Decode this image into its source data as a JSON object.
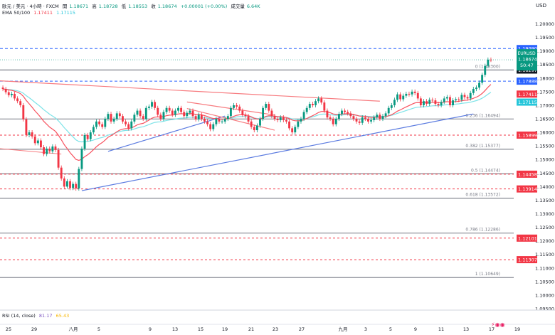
{
  "header": {
    "symbol_line": "歐元 / 美元 · 4小時 · FXCM",
    "open_label": "開",
    "open": "1.18671",
    "high_label": "高",
    "high": "1.18728",
    "low_label": "低",
    "low": "1.18553",
    "close_label": "收",
    "close": "1.18674",
    "change": "+0.00001 (+0.00%)",
    "volume_label": "成交量",
    "volume": "6.64K",
    "ema_label": "EMA 50/100",
    "ema50": "1.17411",
    "ema100": "1.17115",
    "currency": "USD"
  },
  "rsi": {
    "label": "RSI (14, close)",
    "value1": "81.17",
    "value2": "65.43"
  },
  "colors": {
    "up": "#089981",
    "down": "#f23645",
    "ema50": "#f7525f",
    "ema100": "#7de3e8",
    "blue": "#2962ff",
    "fib": "#787b86",
    "trend_red": "#f77c80",
    "trend_blue": "#5b7be0"
  },
  "chart_data": {
    "type": "candlestick",
    "symbol": "EURUSD",
    "timeframe": "4h",
    "ylim": [
      1.095,
      1.2025
    ],
    "y_ticks": [
      "1.20000",
      "1.19500",
      "1.19000",
      "1.18500",
      "1.18000",
      "1.17500",
      "1.17000",
      "1.16500",
      "1.16000",
      "1.15500",
      "1.15000",
      "1.14500",
      "1.14000",
      "1.13500",
      "1.13000",
      "1.12500",
      "1.12000",
      "1.11500",
      "1.11000",
      "1.10500",
      "1.10000",
      "1.09500"
    ],
    "x_ticks": [
      "25",
      "29",
      "八月",
      "5",
      "9",
      "13",
      "15",
      "19",
      "21",
      "23",
      "27",
      "九月",
      "3",
      "5",
      "9",
      "11",
      "13",
      "17",
      "19"
    ],
    "last_price": {
      "label": "EURUSD",
      "value": "1.18674",
      "countdown": "50:47"
    },
    "price_lines": [
      {
        "value": "1.19090",
        "style": "dashed-blue"
      },
      {
        "value": "1.18297",
        "style": "solid-gray"
      },
      {
        "value": "1.17888",
        "style": "dashed-blue"
      },
      {
        "value": "1.15899",
        "style": "dashed-red"
      },
      {
        "value": "1.14458",
        "style": "dashed-red"
      },
      {
        "value": "1.13914",
        "style": "dashed-red"
      },
      {
        "value": "1.12101",
        "style": "dashed-red"
      },
      {
        "value": "1.11307",
        "style": "dashed-red"
      }
    ],
    "ema_tags": [
      {
        "value": "1.17411",
        "color": "#f23645"
      },
      {
        "value": "1.17115",
        "color": "#26c6da"
      }
    ],
    "fib_levels": [
      {
        "label": "0 (1.18300)",
        "value": 1.183
      },
      {
        "label": "0.236 (1.16494)",
        "value": 1.16494
      },
      {
        "label": "0.382 (1.15377)",
        "value": 1.15377
      },
      {
        "label": "0.5 (1.14474)",
        "value": 1.14474
      },
      {
        "label": "0.618 (1.13572)",
        "value": 1.13572
      },
      {
        "label": "0.786 (1.12286)",
        "value": 1.12286
      },
      {
        "label": "1 (1.10649)",
        "value": 1.10649
      }
    ],
    "closes": [
      1.176,
      1.1748,
      1.1737,
      1.1742,
      1.1725,
      1.1715,
      1.17,
      1.1648,
      1.159,
      1.16,
      1.1585,
      1.156,
      1.157,
      1.1545,
      1.152,
      1.154,
      1.153,
      1.1548,
      1.1535,
      1.147,
      1.143,
      1.14,
      1.142,
      1.1395,
      1.141,
      1.1393,
      1.1465,
      1.154,
      1.159,
      1.1575,
      1.16,
      1.162,
      1.164,
      1.163,
      1.162,
      1.165,
      1.1668,
      1.164,
      1.165,
      1.167,
      1.166,
      1.164,
      1.163,
      1.1615,
      1.164,
      1.1665,
      1.168,
      1.166,
      1.165,
      1.169,
      1.1695,
      1.1712,
      1.169,
      1.1665,
      1.165,
      1.1675,
      1.169,
      1.168,
      1.1665,
      1.168,
      1.169,
      1.1675,
      1.166,
      1.1672,
      1.168,
      1.166,
      1.1648,
      1.1665,
      1.165,
      1.164,
      1.163,
      1.1612,
      1.163,
      1.165,
      1.164,
      1.164,
      1.165,
      1.166,
      1.169,
      1.17,
      1.1695,
      1.168,
      1.1665,
      1.166,
      1.164,
      1.162,
      1.1608,
      1.1625,
      1.165,
      1.169,
      1.1705,
      1.168,
      1.166,
      1.165,
      1.1645,
      1.1655,
      1.1645,
      1.164,
      1.1615,
      1.16,
      1.162,
      1.164,
      1.165,
      1.1675,
      1.169,
      1.1705,
      1.17,
      1.1715,
      1.1725,
      1.171,
      1.168,
      1.1655,
      1.165,
      1.163,
      1.165,
      1.1668,
      1.168,
      1.1675,
      1.167,
      1.166,
      1.165,
      1.164,
      1.1635,
      1.1655,
      1.165,
      1.164,
      1.1645,
      1.1655,
      1.1665,
      1.165,
      1.166,
      1.167,
      1.169,
      1.17,
      1.172,
      1.174,
      1.1722,
      1.1735,
      1.1742,
      1.174,
      1.175,
      1.1745,
      1.1725,
      1.17,
      1.1715,
      1.1705,
      1.172,
      1.1718,
      1.1705,
      1.17,
      1.1712,
      1.1725,
      1.173,
      1.17,
      1.1718,
      1.1722,
      1.172,
      1.1738,
      1.173,
      1.1725,
      1.1745,
      1.176,
      1.1765,
      1.1783,
      1.1812,
      1.1845,
      1.1868,
      1.1867
    ]
  }
}
